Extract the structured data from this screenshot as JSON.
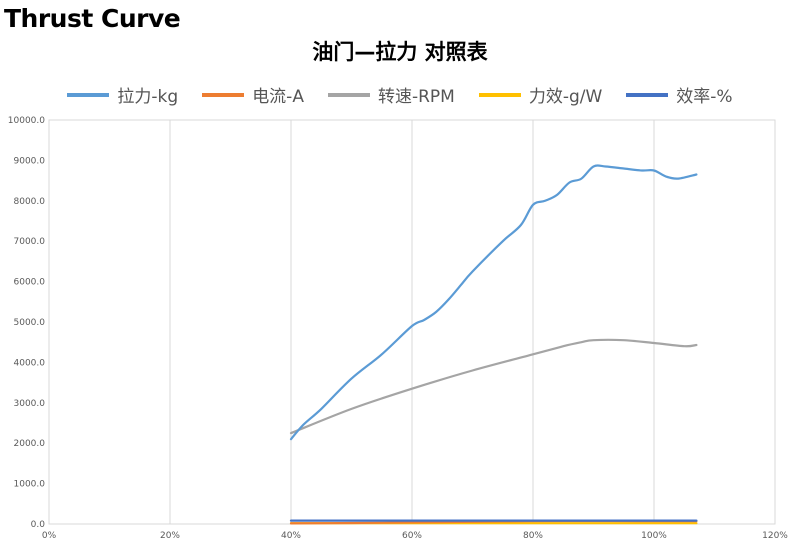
{
  "page": {
    "heading": "Thrust Curve"
  },
  "chart_data": {
    "type": "line",
    "title": "油门—拉力 对照表",
    "xlabel": "",
    "ylabel": "",
    "xlim": [
      0,
      120
    ],
    "ylim": [
      0,
      10000
    ],
    "x_ticks": [
      "0%",
      "20%",
      "40%",
      "60%",
      "80%",
      "100%",
      "120%"
    ],
    "y_ticks": [
      "0.0",
      "1000.0",
      "2000.0",
      "3000.0",
      "4000.0",
      "5000.0",
      "6000.0",
      "7000.0",
      "8000.0",
      "9000.0",
      "10000.0"
    ],
    "grid": "vertical",
    "legend_position": "top",
    "series": [
      {
        "name": "拉力-kg",
        "color": "#5b9bd5",
        "x": [
          40,
          42,
          45,
          50,
          55,
          60,
          62,
          64,
          66,
          68,
          70,
          75,
          78,
          80,
          82,
          84,
          86,
          88,
          90,
          92,
          95,
          98,
          100,
          102,
          104,
          107
        ],
        "y": [
          2100,
          2450,
          2850,
          3600,
          4200,
          4900,
          5050,
          5250,
          5550,
          5900,
          6250,
          7000,
          7400,
          7900,
          8000,
          8150,
          8450,
          8550,
          8850,
          8850,
          8800,
          8750,
          8750,
          8600,
          8550,
          8650
        ]
      },
      {
        "name": "电流-A",
        "color": "#ed7d31",
        "x": [
          40,
          50,
          60,
          70,
          80,
          90,
          100,
          107
        ],
        "y": [
          15,
          25,
          40,
          55,
          70,
          75,
          70,
          70
        ]
      },
      {
        "name": "转速-RPM",
        "color": "#a5a5a5",
        "x": [
          40,
          50,
          60,
          70,
          80,
          85,
          88,
          90,
          95,
          100,
          105,
          107
        ],
        "y": [
          2250,
          2850,
          3350,
          3800,
          4200,
          4400,
          4500,
          4550,
          4550,
          4480,
          4400,
          4430
        ]
      },
      {
        "name": "力效-g/W",
        "color": "#ffc000",
        "x": [
          40,
          50,
          60,
          70,
          80,
          90,
          100,
          107
        ],
        "y": [
          20,
          20,
          20,
          20,
          20,
          20,
          20,
          20
        ]
      },
      {
        "name": "效率-%",
        "color": "#4472c4",
        "x": [
          40,
          50,
          60,
          70,
          80,
          90,
          100,
          107
        ],
        "y": [
          85,
          85,
          85,
          85,
          85,
          85,
          85,
          85
        ]
      }
    ]
  }
}
